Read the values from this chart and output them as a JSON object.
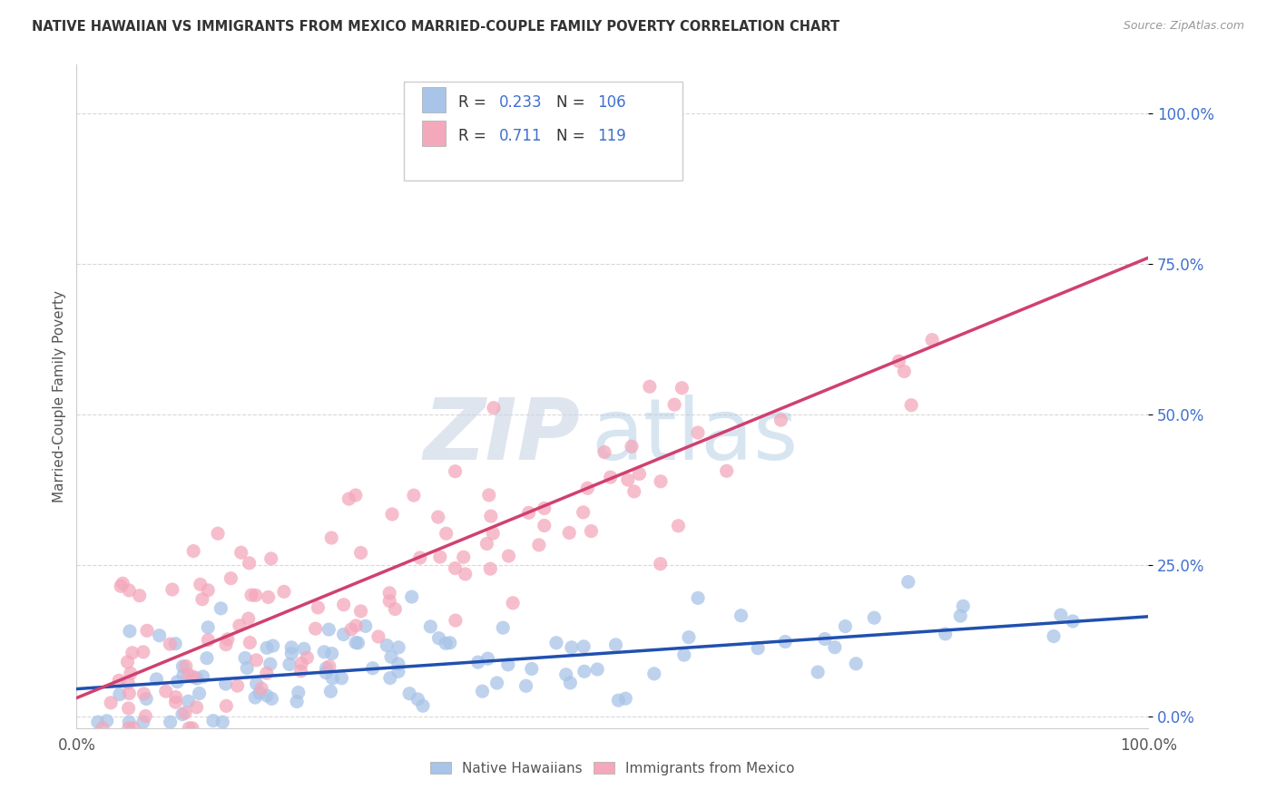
{
  "title": "NATIVE HAWAIIAN VS IMMIGRANTS FROM MEXICO MARRIED-COUPLE FAMILY POVERTY CORRELATION CHART",
  "source": "Source: ZipAtlas.com",
  "ylabel": "Married-Couple Family Poverty",
  "xlim": [
    0,
    1
  ],
  "ylim": [
    -0.02,
    1.08
  ],
  "xtick_labels": [
    "0.0%",
    "100.0%"
  ],
  "ytick_labels": [
    "0.0%",
    "25.0%",
    "50.0%",
    "75.0%",
    "100.0%"
  ],
  "ytick_positions": [
    0.0,
    0.25,
    0.5,
    0.75,
    1.0
  ],
  "blue_R": 0.233,
  "blue_N": 106,
  "pink_R": 0.711,
  "pink_N": 119,
  "blue_color": "#a8c4e8",
  "pink_color": "#f4a8bc",
  "blue_line_color": "#2050b0",
  "pink_line_color": "#d04070",
  "title_color": "#333333",
  "source_color": "#999999",
  "legend_text_color": "#333333",
  "legend_value_color": "#4070d0",
  "watermark_zip_color": "#c0cce0",
  "watermark_atlas_color": "#b8d4e8",
  "grid_color": "#d8d8d8",
  "background_color": "#ffffff",
  "blue_line_slope": 0.12,
  "blue_line_intercept": 0.045,
  "pink_line_slope": 0.73,
  "pink_line_intercept": 0.03,
  "legend_label_blue": "Native Hawaiians",
  "legend_label_pink": "Immigrants from Mexico"
}
